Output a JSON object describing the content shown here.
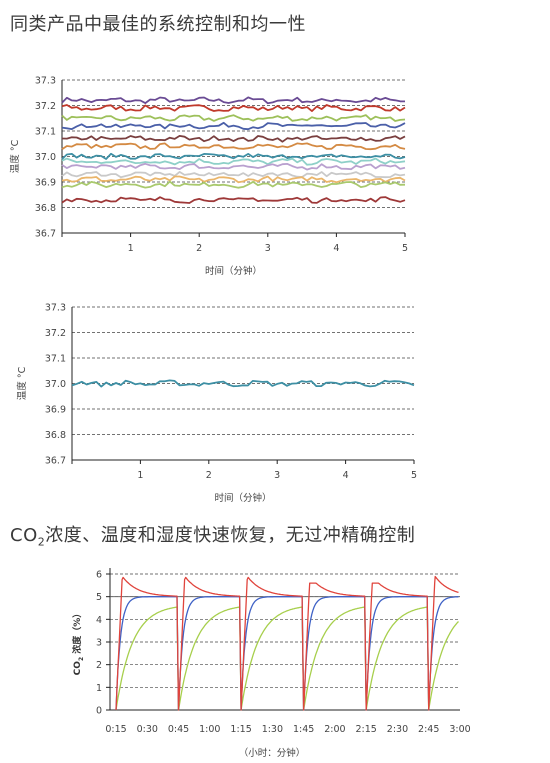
{
  "headings": {
    "first": "同类产品中最佳的系统控制和均一性",
    "second_pre": "CO",
    "second_sub": "2",
    "second_post": "浓度、温度和湿度快速恢复，无过冲精确控制"
  },
  "chart_data": [
    {
      "type": "line",
      "title": "",
      "xlabel": "时间（分钟）",
      "ylabel": "温度 °C",
      "xlim": [
        0,
        5
      ],
      "ylim": [
        36.7,
        37.3
      ],
      "xticks": [
        1,
        2,
        3,
        4,
        5
      ],
      "yticks": [
        "36.7",
        "36.8",
        "36.9",
        "37.0",
        "37.1",
        "37.2",
        "37.3"
      ],
      "grid": "horizontal-dashed",
      "series": [
        {
          "color": "#6a4b94",
          "level": 37.22
        },
        {
          "color": "#c0392b",
          "level": 37.19
        },
        {
          "color": "#9dc05a",
          "level": 37.15
        },
        {
          "color": "#4a5fa8",
          "level": 37.12
        },
        {
          "color": "#7a3f3f",
          "level": 37.07
        },
        {
          "color": "#d48a43",
          "level": 37.04
        },
        {
          "color": "#3d8fa4",
          "level": 37.0
        },
        {
          "color": "#8ed0c8",
          "level": 36.98
        },
        {
          "color": "#b9a0cf",
          "level": 36.96
        },
        {
          "color": "#c9c9c9",
          "level": 36.93
        },
        {
          "color": "#eab56a",
          "level": 36.91
        },
        {
          "color": "#a9c96d",
          "level": 36.89
        },
        {
          "color": "#9e3838",
          "level": 36.83
        }
      ]
    },
    {
      "type": "line",
      "title": "",
      "xlabel": "时间（分钟）",
      "ylabel": "温度 °C",
      "xlim": [
        0,
        5
      ],
      "ylim": [
        36.7,
        37.3
      ],
      "xticks": [
        1,
        2,
        3,
        4,
        5
      ],
      "yticks": [
        "36.7",
        "36.8",
        "36.9",
        "37.0",
        "37.1",
        "37.2",
        "37.3"
      ],
      "grid": "horizontal-dashed",
      "series": [
        {
          "color": "#3d8fa4",
          "level": 37.0
        }
      ]
    },
    {
      "type": "line",
      "title": "",
      "xlabel": "（小时：分钟）",
      "ylabel": "CO",
      "ylabel_sub": "2",
      "ylabel_post": "浓度（%）",
      "xlim": [
        0.25,
        3.0
      ],
      "ylim": [
        0,
        6
      ],
      "xticks": [
        "0:15",
        "0:30",
        "0:45",
        "1:00",
        "1:15",
        "1:30",
        "1:45",
        "2:00",
        "2:15",
        "2:30",
        "2:45",
        "3:00"
      ],
      "yticks": [
        "0",
        "1",
        "2",
        "3",
        "4",
        "5",
        "6"
      ],
      "grid": "horizontal-dashed",
      "door_openings_hours": [
        0.25,
        0.75,
        1.25,
        1.75,
        2.25,
        2.75
      ],
      "series": [
        {
          "color": "#e0443c",
          "type": "overshoot",
          "peak": 5.9,
          "setpoint": 5.0
        },
        {
          "color": "#3f62c6",
          "type": "fast",
          "setpoint": 5.0
        },
        {
          "color": "#a7cf4c",
          "type": "slow",
          "setpoint": 5.0
        }
      ]
    }
  ]
}
